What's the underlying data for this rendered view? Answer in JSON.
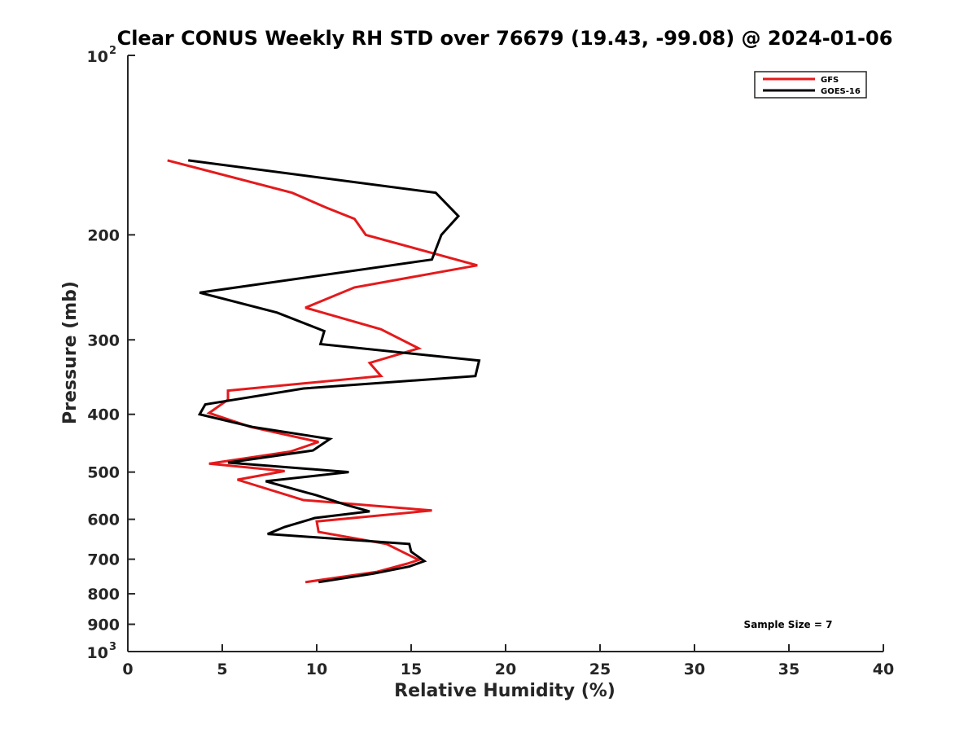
{
  "chart_data": {
    "type": "line",
    "title": "Clear CONUS Weekly RH STD over 76679 (19.43, -99.08) @ 2024-01-06",
    "xlabel": "Relative Humidity (%)",
    "ylabel": "Pressure (mb)",
    "xlim": [
      0,
      40
    ],
    "ylim": [
      100,
      1000
    ],
    "y_scale": "log",
    "y_reversed": true,
    "x_ticks": [
      "0",
      "5",
      "10",
      "15",
      "20",
      "25",
      "30",
      "35",
      "40"
    ],
    "y_ticks": [
      {
        "value": 100,
        "base": "10",
        "exp": "2"
      },
      {
        "value": 200,
        "label": "200"
      },
      {
        "value": 300,
        "label": "300"
      },
      {
        "value": 400,
        "label": "400"
      },
      {
        "value": 500,
        "label": "500"
      },
      {
        "value": 600,
        "label": "600"
      },
      {
        "value": 700,
        "label": "700"
      },
      {
        "value": 800,
        "label": "800"
      },
      {
        "value": 900,
        "label": "900"
      },
      {
        "value": 1000,
        "base": "10",
        "exp": "3"
      }
    ],
    "legend_position": "top-right",
    "grid": false,
    "annotation": "Sample Size = 7",
    "series": [
      {
        "name": "GFS",
        "color": "#e41a1c",
        "points": [
          [
            2.1,
            150
          ],
          [
            8.7,
            170
          ],
          [
            10.5,
            180
          ],
          [
            12.0,
            188
          ],
          [
            12.6,
            200
          ],
          [
            18.5,
            225
          ],
          [
            12.0,
            245
          ],
          [
            9.4,
            265
          ],
          [
            13.4,
            288
          ],
          [
            15.4,
            310
          ],
          [
            12.8,
            328
          ],
          [
            13.4,
            345
          ],
          [
            5.3,
            365
          ],
          [
            5.3,
            378
          ],
          [
            4.3,
            398
          ],
          [
            6.5,
            420
          ],
          [
            10.1,
            445
          ],
          [
            8.6,
            462
          ],
          [
            4.3,
            484
          ],
          [
            8.3,
            498
          ],
          [
            5.8,
            515
          ],
          [
            9.3,
            557
          ],
          [
            16.1,
            580
          ],
          [
            10.0,
            605
          ],
          [
            10.1,
            630
          ],
          [
            13.7,
            660
          ],
          [
            15.4,
            702
          ],
          [
            14.8,
            712
          ],
          [
            13.2,
            735
          ],
          [
            9.4,
            765
          ]
        ]
      },
      {
        "name": "GOES-16",
        "color": "#000000",
        "points": [
          [
            3.2,
            150
          ],
          [
            16.3,
            170
          ],
          [
            17.5,
            186
          ],
          [
            16.6,
            200
          ],
          [
            16.1,
            220
          ],
          [
            3.8,
            250
          ],
          [
            7.9,
            270
          ],
          [
            10.4,
            290
          ],
          [
            10.2,
            305
          ],
          [
            18.6,
            325
          ],
          [
            18.4,
            345
          ],
          [
            9.3,
            362
          ],
          [
            4.1,
            385
          ],
          [
            3.8,
            400
          ],
          [
            6.6,
            420
          ],
          [
            10.7,
            440
          ],
          [
            9.8,
            460
          ],
          [
            5.3,
            482
          ],
          [
            11.7,
            500
          ],
          [
            7.3,
            518
          ],
          [
            10.0,
            547
          ],
          [
            11.6,
            568
          ],
          [
            12.8,
            582
          ],
          [
            9.9,
            597
          ],
          [
            8.3,
            618
          ],
          [
            7.4,
            635
          ],
          [
            14.9,
            660
          ],
          [
            15.0,
            680
          ],
          [
            15.7,
            705
          ],
          [
            14.9,
            720
          ],
          [
            13.0,
            740
          ],
          [
            10.1,
            765
          ]
        ]
      }
    ]
  }
}
